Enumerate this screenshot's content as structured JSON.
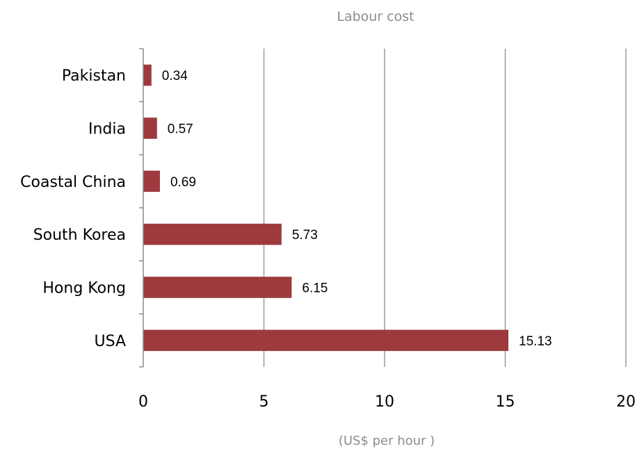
{
  "chart_data": {
    "type": "bar",
    "orientation": "horizontal",
    "title": "Labour cost",
    "xlabel": "(US$ per hour )",
    "ylabel": "",
    "categories": [
      "Pakistan",
      "India",
      "Coastal China",
      "South Korea",
      "Hong Kong",
      "USA"
    ],
    "values": [
      0.34,
      0.57,
      0.69,
      5.73,
      6.15,
      15.13
    ],
    "data_labels": [
      "0.34",
      "0.57",
      "0.69",
      "5.73",
      "6.15",
      "15.13"
    ],
    "xlim": [
      0,
      20
    ],
    "xticks": [
      0,
      5,
      10,
      15,
      20
    ],
    "xtick_labels": [
      "0",
      "5",
      "10",
      "15",
      "20"
    ],
    "grid": "vertical",
    "legend": "none",
    "colors": {
      "bar": "#9e3a3e",
      "grid": "#9a9a9a",
      "title": "#8c8c8c"
    }
  }
}
